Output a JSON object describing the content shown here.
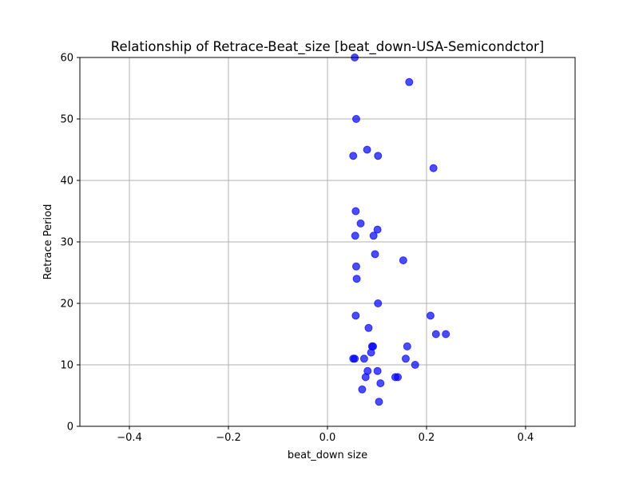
{
  "chart_data": {
    "type": "scatter",
    "title": "Relationship of Retrace-Beat_size [beat_down-USA-Semicondctor]",
    "xlabel": "beat_down size",
    "ylabel": "Retrace Period",
    "xlim": [
      -0.5,
      0.5
    ],
    "ylim": [
      0,
      60
    ],
    "xticks": [
      -0.4,
      -0.2,
      0.0,
      0.2,
      0.4
    ],
    "xtick_labels": [
      "−0.4",
      "−0.2",
      "0.0",
      "0.2",
      "0.4"
    ],
    "yticks": [
      0,
      10,
      20,
      30,
      40,
      50,
      60
    ],
    "ytick_labels": [
      "0",
      "10",
      "20",
      "30",
      "40",
      "50",
      "60"
    ],
    "grid": true,
    "legend": "none",
    "marker_color": "#0000ff",
    "marker_alpha": 0.7,
    "points": [
      {
        "x": 0.055,
        "y": 60
      },
      {
        "x": 0.165,
        "y": 56
      },
      {
        "x": 0.058,
        "y": 50
      },
      {
        "x": 0.08,
        "y": 45
      },
      {
        "x": 0.052,
        "y": 44
      },
      {
        "x": 0.102,
        "y": 44
      },
      {
        "x": 0.214,
        "y": 42
      },
      {
        "x": 0.057,
        "y": 35
      },
      {
        "x": 0.067,
        "y": 33
      },
      {
        "x": 0.101,
        "y": 32
      },
      {
        "x": 0.056,
        "y": 31
      },
      {
        "x": 0.093,
        "y": 31
      },
      {
        "x": 0.096,
        "y": 28
      },
      {
        "x": 0.153,
        "y": 27
      },
      {
        "x": 0.058,
        "y": 26
      },
      {
        "x": 0.059,
        "y": 24
      },
      {
        "x": 0.102,
        "y": 20
      },
      {
        "x": 0.057,
        "y": 18
      },
      {
        "x": 0.208,
        "y": 18
      },
      {
        "x": 0.083,
        "y": 16
      },
      {
        "x": 0.219,
        "y": 15
      },
      {
        "x": 0.239,
        "y": 15
      },
      {
        "x": 0.09,
        "y": 13
      },
      {
        "x": 0.092,
        "y": 13
      },
      {
        "x": 0.161,
        "y": 13
      },
      {
        "x": 0.088,
        "y": 12
      },
      {
        "x": 0.052,
        "y": 11
      },
      {
        "x": 0.055,
        "y": 11
      },
      {
        "x": 0.074,
        "y": 11
      },
      {
        "x": 0.158,
        "y": 11
      },
      {
        "x": 0.177,
        "y": 10
      },
      {
        "x": 0.081,
        "y": 9
      },
      {
        "x": 0.101,
        "y": 9
      },
      {
        "x": 0.077,
        "y": 8
      },
      {
        "x": 0.137,
        "y": 8
      },
      {
        "x": 0.142,
        "y": 8
      },
      {
        "x": 0.107,
        "y": 7
      },
      {
        "x": 0.07,
        "y": 6
      },
      {
        "x": 0.104,
        "y": 4
      }
    ]
  }
}
